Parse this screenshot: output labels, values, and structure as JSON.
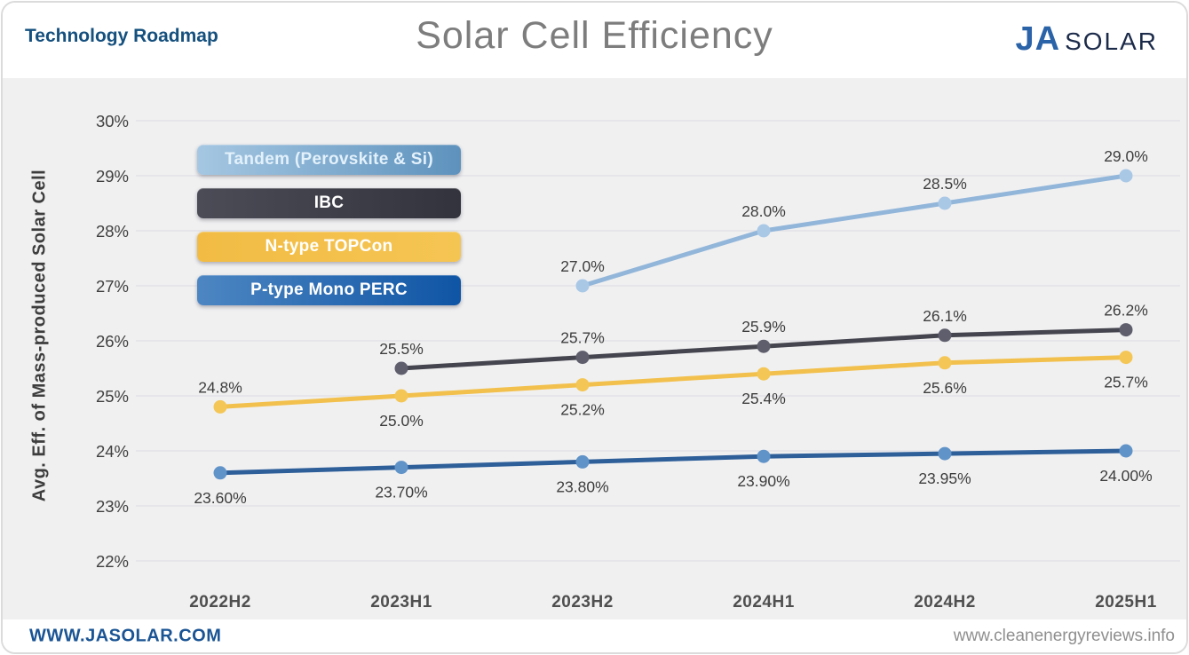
{
  "header": {
    "roadmap_label": "Technology Roadmap",
    "title": "Solar Cell Efficiency",
    "logo": {
      "ja": "JA",
      "solar": "SOLAR"
    }
  },
  "colors": {
    "brand_ja_blue": "#2a63a8",
    "brand_solar_navy": "#1c2b4a",
    "roadmap_blue": "#15507e",
    "title_gray": "#7d7d7d",
    "band_bg": "#f0f0f1",
    "grid_line": "#e3e3e7",
    "link_blue": "#1a5494",
    "footer_gray": "#8f8f8f",
    "text_dark": "#3d3d3d"
  },
  "legend": {
    "items": [
      {
        "label": "Tandem (Perovskite & Si)",
        "color_start": "#a5c7e2",
        "color_end": "#5e92bd",
        "text_color": "#e3f1fb"
      },
      {
        "label": "IBC",
        "color_start": "#4c4c57",
        "color_end": "#33333d",
        "text_color": "#ffffff"
      },
      {
        "label": "N-type TOPCon",
        "color_start": "#f2bc44",
        "color_end": "#f5c553",
        "text_color": "#ffffff"
      },
      {
        "label": "P-type Mono PERC",
        "color_start": "#4d86c2",
        "color_end": "#0f55a5",
        "text_color": "#ffffff"
      }
    ]
  },
  "chart_data": {
    "type": "line",
    "title": "Solar Cell Efficiency",
    "ylabel": "Avg. Eff. of Mass-produced Solar Cell",
    "xlabel": "",
    "categories": [
      "2022H2",
      "2023H1",
      "2023H2",
      "2024H1",
      "2024H2",
      "2025H1"
    ],
    "ylim": [
      22,
      30
    ],
    "y_tick_values": [
      30,
      29,
      28,
      27,
      26,
      25,
      24,
      23,
      22
    ],
    "y_tick_labels": [
      "30%",
      "29%",
      "28%",
      "27%",
      "26%",
      "25%",
      "24%",
      "23%",
      "22%"
    ],
    "grid": "horizontal",
    "legend_position": "top-left",
    "series": [
      {
        "name": "Tandem (Perovskite & Si)",
        "line_color": "#92b6d9",
        "marker_color": "#a9c8e6",
        "values": [
          null,
          null,
          27.0,
          28.0,
          28.5,
          29.0
        ],
        "point_labels": [
          null,
          null,
          "27.0%",
          "28.0%",
          "28.5%",
          "29.0%"
        ],
        "label_sides": [
          null,
          null,
          "above",
          "above",
          "above",
          "above"
        ]
      },
      {
        "name": "IBC",
        "line_color": "#45454f",
        "marker_color": "#5e5e6c",
        "values": [
          null,
          25.5,
          25.7,
          25.9,
          26.1,
          26.2
        ],
        "point_labels": [
          null,
          "25.5%",
          "25.7%",
          "25.9%",
          "26.1%",
          "26.2%"
        ],
        "label_sides": [
          null,
          "above",
          "above",
          "above",
          "above",
          "above"
        ]
      },
      {
        "name": "N-type TOPCon",
        "line_color": "#f2c04c",
        "marker_color": "#f4c655",
        "values": [
          24.8,
          25.0,
          25.2,
          25.4,
          25.6,
          25.7
        ],
        "point_labels": [
          "24.8%",
          "25.0%",
          "25.2%",
          "25.4%",
          "25.6%",
          "25.7%"
        ],
        "label_sides": [
          "above",
          "below",
          "below",
          "below",
          "below",
          "below"
        ]
      },
      {
        "name": "P-type Mono PERC",
        "line_color": "#2e5f99",
        "marker_color": "#6093c8",
        "values": [
          23.6,
          23.7,
          23.8,
          23.9,
          23.95,
          24.0
        ],
        "point_labels": [
          "23.60%",
          "23.70%",
          "23.80%",
          "23.90%",
          "23.95%",
          "24.00%"
        ],
        "label_sides": [
          "below",
          "below",
          "below",
          "below",
          "below",
          "below"
        ]
      }
    ]
  },
  "footer": {
    "left": "WWW.JASOLAR.COM",
    "right": "www.cleanenergyreviews.info"
  }
}
